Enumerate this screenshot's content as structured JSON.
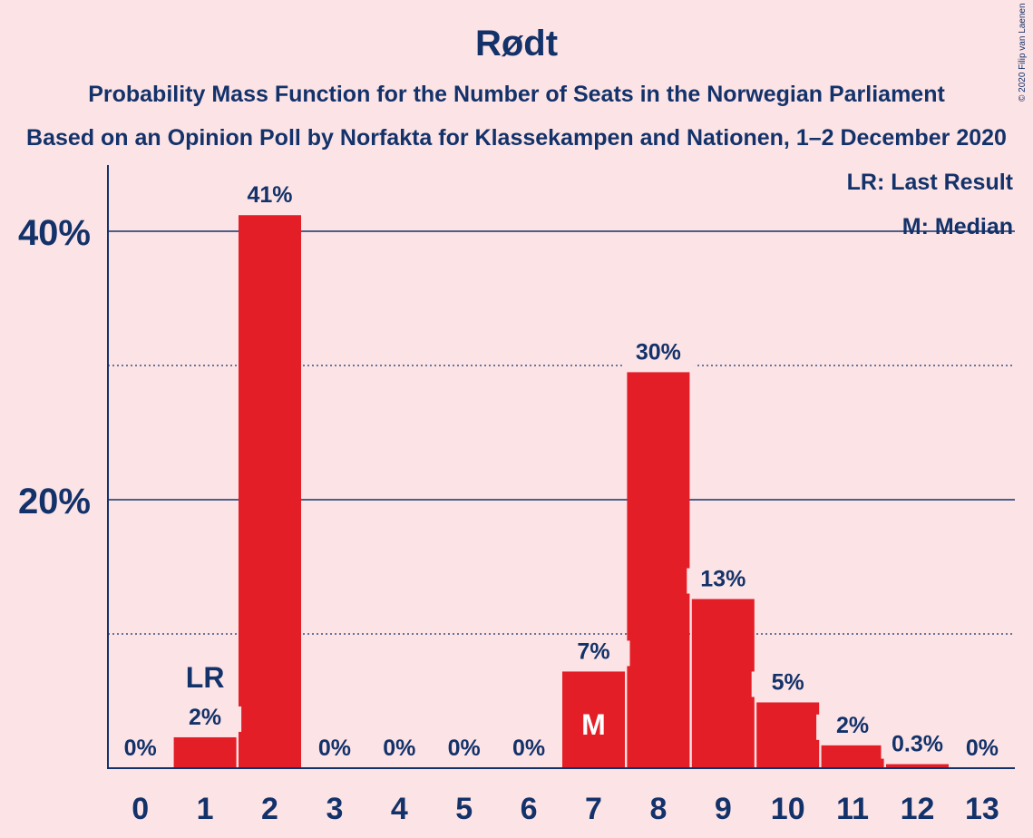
{
  "header": {
    "title": "Rødt",
    "subtitle1": "Probability Mass Function for the Number of Seats in the Norwegian Parliament",
    "subtitle2": "Based on an Opinion Poll by Norfakta for Klassekampen and Nationen, 1–2 December 2020",
    "copyright": "© 2020 Filip van Laenen"
  },
  "legend": {
    "last_result": "LR: Last Result",
    "median": "M: Median"
  },
  "colors": {
    "background": "#FCE4E6",
    "bar": "#E31E26",
    "text": "#13326A"
  },
  "chart_data": {
    "type": "bar",
    "categories": [
      "0",
      "1",
      "2",
      "3",
      "4",
      "5",
      "6",
      "7",
      "8",
      "9",
      "10",
      "11",
      "12",
      "13"
    ],
    "values": [
      0,
      2.3,
      41.2,
      0,
      0,
      0,
      0,
      7.2,
      29.5,
      12.6,
      4.9,
      1.7,
      0.3,
      0
    ],
    "value_labels": [
      "0%",
      "2%",
      "41%",
      "0%",
      "0%",
      "0%",
      "0%",
      "7%",
      "30%",
      "13%",
      "5%",
      "2%",
      "0.3%",
      "0%"
    ],
    "y_tick_labels": [
      {
        "value": 20,
        "label": "20%"
      },
      {
        "value": 40,
        "label": "40%"
      }
    ],
    "minor_gridlines": [
      10,
      30
    ],
    "ylim": [
      0,
      45
    ],
    "last_result": {
      "category": "1",
      "label": "LR"
    },
    "median": {
      "category": "7",
      "label": "M"
    },
    "legend_position": "top-right"
  }
}
